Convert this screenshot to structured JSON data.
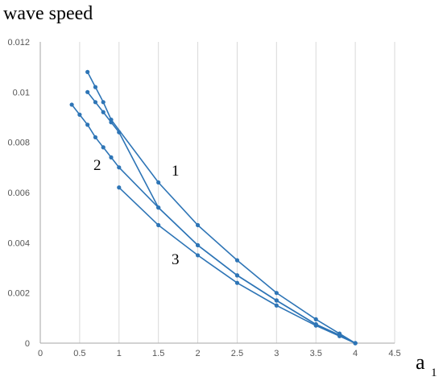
{
  "chart_data": {
    "type": "line",
    "ylabel": "wave speed",
    "xlabel": "a",
    "xlabel_subscript": "1",
    "xlim": [
      0,
      4.5
    ],
    "ylim": [
      0,
      0.012
    ],
    "x_ticks": [
      "0",
      "0.5",
      "1",
      "1.5",
      "2",
      "2.5",
      "3",
      "3.5",
      "4",
      "4.5"
    ],
    "y_ticks": [
      "0",
      "0.002",
      "0.004",
      "0.006",
      "0.008",
      "0.01",
      "0.012"
    ],
    "grid": "vertical",
    "line_color": "#2e75b6",
    "series": [
      {
        "label": "1",
        "points": [
          [
            0.6,
            0.0108
          ],
          [
            0.7,
            0.0102
          ],
          [
            0.8,
            0.0096
          ],
          [
            0.9,
            0.0089
          ],
          [
            1.5,
            0.0064
          ],
          [
            2.0,
            0.0047
          ],
          [
            2.5,
            0.0033
          ],
          [
            3.0,
            0.002
          ],
          [
            3.5,
            0.00095
          ],
          [
            3.8,
            0.00038
          ],
          [
            4.0,
            0.0
          ]
        ]
      },
      {
        "label": "",
        "points": [
          [
            0.6,
            0.01
          ],
          [
            0.7,
            0.0096
          ],
          [
            0.8,
            0.0092
          ],
          [
            0.9,
            0.0088
          ],
          [
            1.0,
            0.0084
          ],
          [
            1.5,
            0.0054
          ],
          [
            2.0,
            0.0039
          ],
          [
            2.5,
            0.0027
          ],
          [
            3.0,
            0.0017
          ],
          [
            3.5,
            0.00075
          ],
          [
            3.8,
            0.00032
          ],
          [
            4.0,
            0.0
          ]
        ]
      },
      {
        "label": "2",
        "points": [
          [
            0.4,
            0.0095
          ],
          [
            0.5,
            0.0091
          ],
          [
            0.6,
            0.0087
          ],
          [
            0.7,
            0.0082
          ],
          [
            0.8,
            0.0078
          ],
          [
            0.9,
            0.0074
          ],
          [
            1.0,
            0.007
          ],
          [
            1.5,
            0.0054
          ],
          [
            2.0,
            0.0039
          ],
          [
            2.5,
            0.0027
          ],
          [
            3.0,
            0.0017
          ],
          [
            3.5,
            0.00075
          ],
          [
            3.8,
            0.0003
          ],
          [
            4.0,
            0.0
          ]
        ]
      },
      {
        "label": "3",
        "points": [
          [
            1.0,
            0.0062
          ],
          [
            1.5,
            0.0047
          ],
          [
            2.0,
            0.0035
          ],
          [
            2.5,
            0.0024
          ],
          [
            3.0,
            0.0015
          ],
          [
            3.5,
            0.0007
          ],
          [
            3.8,
            0.00028
          ],
          [
            4.0,
            0.0
          ]
        ]
      }
    ]
  }
}
